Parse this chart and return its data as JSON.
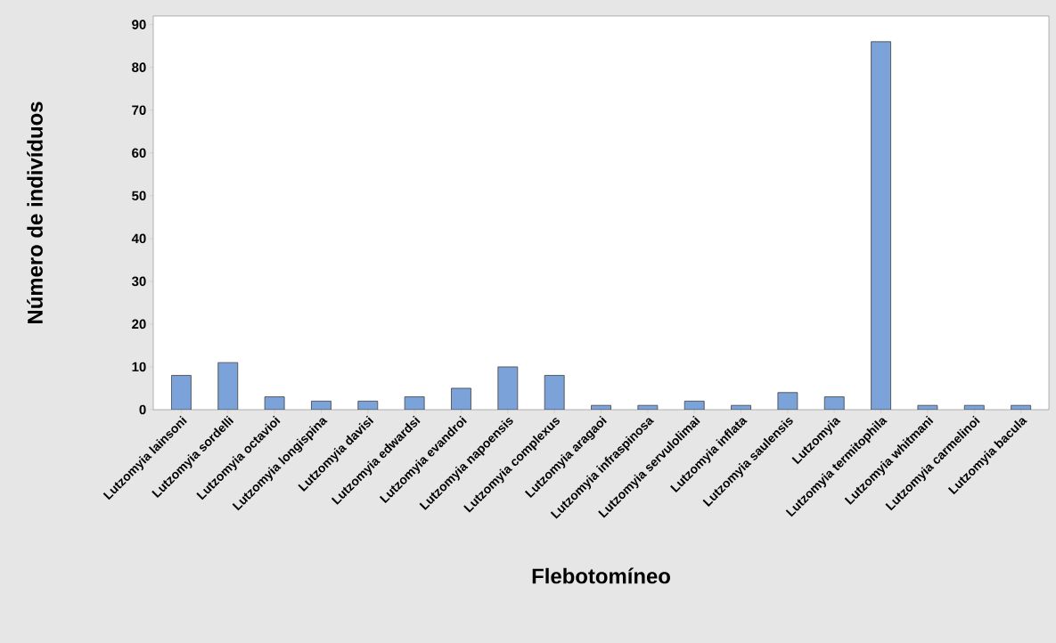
{
  "chart_data": {
    "type": "bar",
    "xlabel": "Flebotomíneo",
    "ylabel": "Número de indivíduos",
    "categories": [
      "Lutzomyia lainsoni",
      "Lutzomyia sordelli",
      "Lutzomyia octavioi",
      "Lutzomyia longispina",
      "Lutzomyia davisi",
      "Lutzomyia edwardsi",
      "Lutzomyia evandroi",
      "Lutzomyia napoensis",
      "Lutzomyia complexus",
      "Lutzomyia aragaoi",
      "Lutzomyia infraspinosa",
      "Lutzomyia servulolimai",
      "Lutzomyia inflata",
      "Lutzomyia saulensis",
      "Lutzomyia",
      "Lutzomyia termitophila",
      "Lutzomyia whitmani",
      "Lutzomyia carmelinoi",
      "Lutzomyia bacula"
    ],
    "values": [
      8,
      11,
      3,
      2,
      2,
      3,
      5,
      10,
      8,
      1,
      1,
      2,
      1,
      4,
      3,
      86,
      1,
      1,
      1
    ],
    "color": "#7ba3d9",
    "ylim": [
      0,
      92
    ],
    "yticks": [
      0,
      10,
      20,
      30,
      40,
      50,
      60,
      70,
      80,
      90
    ]
  }
}
